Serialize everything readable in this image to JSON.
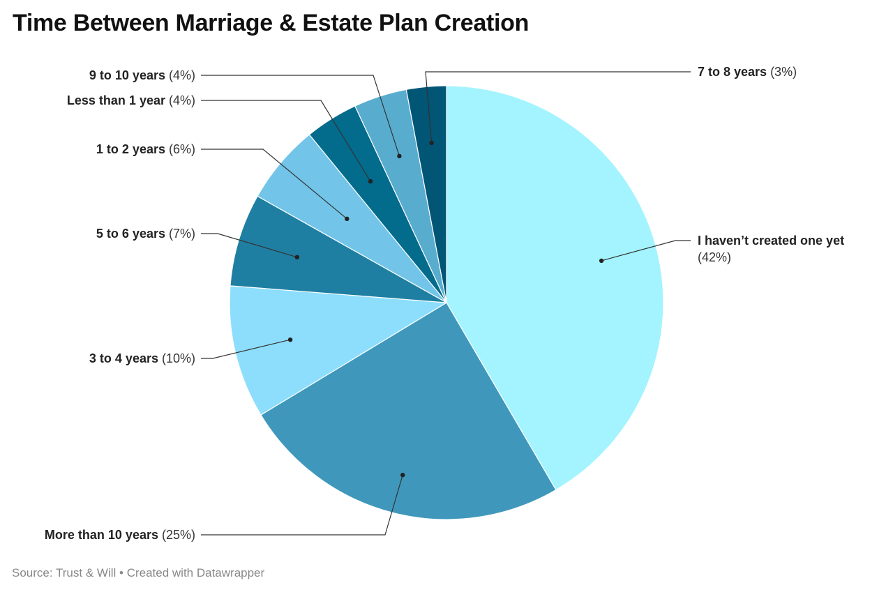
{
  "title": "Time Between Marriage & Estate Plan Creation",
  "footer": {
    "source": "Source: Trust & Will",
    "separator": "•",
    "credit": "Created with Datawrapper"
  },
  "chart_data": {
    "type": "pie",
    "title": "Time Between Marriage & Estate Plan Creation",
    "unit": "%",
    "slices": [
      {
        "label": "I haven’t created one yet",
        "value": 42,
        "display": "(42%)",
        "color": "#a3f4fe"
      },
      {
        "label": "More than 10 years",
        "value": 25,
        "display": "(25%)",
        "color": "#3f98bb"
      },
      {
        "label": "3 to 4 years",
        "value": 10,
        "display": "(10%)",
        "color": "#8ddefd"
      },
      {
        "label": "5 to 6 years",
        "value": 7,
        "display": "(7%)",
        "color": "#1f7fa2"
      },
      {
        "label": "1 to 2 years",
        "value": 6,
        "display": "(6%)",
        "color": "#72c5e9"
      },
      {
        "label": "Less than 1 year",
        "value": 4,
        "display": "(4%)",
        "color": "#036b8b"
      },
      {
        "label": "9 to 10 years",
        "value": 4,
        "display": "(4%)",
        "color": "#58adcf"
      },
      {
        "label": "7 to 8 years",
        "value": 3,
        "display": "(3%)",
        "color": "#015575"
      }
    ]
  }
}
